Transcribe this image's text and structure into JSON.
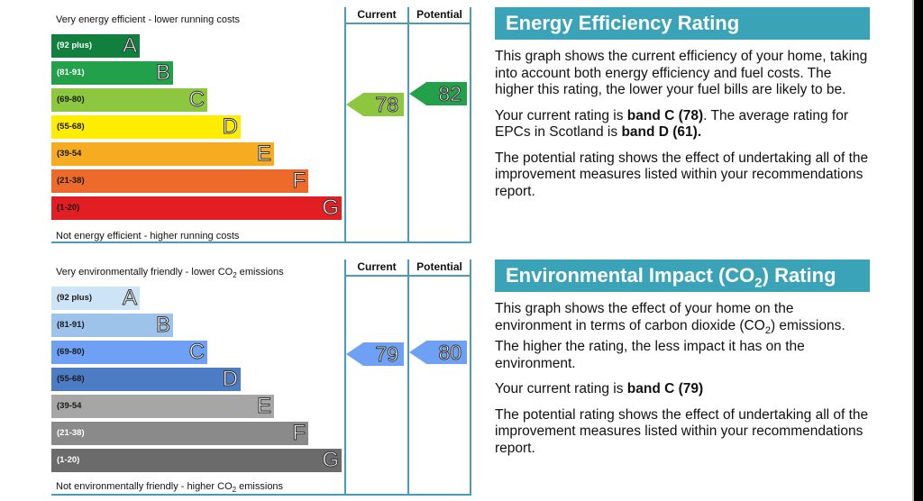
{
  "energy": {
    "top_label": "Very energy efficient - lower running costs",
    "bottom_label": "Not energy efficient - higher running costs",
    "col_current": "Current",
    "col_potential": "Potential",
    "bands": [
      {
        "range": "(92 plus)",
        "letter": "A",
        "color": "#11803f",
        "text_color": "#ffffff"
      },
      {
        "range": "(81-91)",
        "letter": "B",
        "color": "#23a14a",
        "text_color": "#ffffff"
      },
      {
        "range": "(69-80)",
        "letter": "C",
        "color": "#8dc63f",
        "text_color": "#1a1a1a"
      },
      {
        "range": "(55-68)",
        "letter": "D",
        "color": "#ffed00",
        "text_color": "#1a1a1a"
      },
      {
        "range": "(39-54",
        "letter": "E",
        "color": "#f7ab20",
        "text_color": "#1a1a1a"
      },
      {
        "range": "(21-38)",
        "letter": "F",
        "color": "#ee6a2a",
        "text_color": "#1a1a1a"
      },
      {
        "range": "(1-20)",
        "letter": "G",
        "color": "#e31d24",
        "text_color": "#1a1a1a"
      }
    ],
    "current": {
      "value": "78",
      "band": "C",
      "color": "#8dc63f"
    },
    "potential": {
      "value": "82",
      "band": "B",
      "color": "#23a14a"
    }
  },
  "co2": {
    "top_label_pre": "Very environmentally friendly - lower CO",
    "top_label_sub": "2",
    "top_label_post": " emissions",
    "bottom_label_pre": "Not environmentally friendly - higher CO",
    "bottom_label_sub": "2",
    "bottom_label_post": " emissions",
    "col_current": "Current",
    "col_potential": "Potential",
    "bands": [
      {
        "range": "(92 plus)",
        "letter": "A",
        "color": "#cde3f6",
        "text_color": "#1a1a1a"
      },
      {
        "range": "(81-91)",
        "letter": "B",
        "color": "#9dc3ea",
        "text_color": "#1a1a1a"
      },
      {
        "range": "(69-80)",
        "letter": "C",
        "color": "#6ea1f6",
        "text_color": "#1a1a1a"
      },
      {
        "range": "(55-68)",
        "letter": "D",
        "color": "#4c7dc4",
        "text_color": "#1a1a1a"
      },
      {
        "range": "(39-54",
        "letter": "E",
        "color": "#a6a6a6",
        "text_color": "#1a1a1a"
      },
      {
        "range": "(21-38)",
        "letter": "F",
        "color": "#8a8a8a",
        "text_color": "#ffffff"
      },
      {
        "range": "(1-20)",
        "letter": "G",
        "color": "#6b6b6b",
        "text_color": "#ffffff"
      }
    ],
    "current": {
      "value": "79",
      "band": "C",
      "color": "#6ea1f6"
    },
    "potential": {
      "value": "80",
      "band": "C",
      "color": "#6ea1f6"
    }
  },
  "energy_panel": {
    "title": "Energy Efficiency Rating",
    "p1": "This graph shows the current efficiency of your home, taking into account both energy efficiency and fuel costs. The higher this rating, the lower your fuel bills are likely to be.",
    "p2_a": "Your current rating is ",
    "p2_b": "band C (78)",
    "p2_c": ". The average rating for EPCs in Scotland is ",
    "p2_d": "band D (61).",
    "p3": "The potential rating shows the effect of undertaking all of the improvement measures listed within your recommendations report."
  },
  "co2_panel": {
    "title_pre": "Environmental Impact (CO",
    "title_sub": "2",
    "title_post": ") Rating",
    "p1_pre": "This graph shows the effect of your home on the environment in terms of carbon dioxide (CO",
    "p1_sub": "2",
    "p1_post": ") emissions. The higher the rating, the less impact it has on the environment.",
    "p2_a": "Your current rating is ",
    "p2_b": "band C (79)",
    "p3": "The potential rating shows the effect of undertaking all of the improvement measures listed within your recommendations report."
  },
  "accent_color": "#3ba3b8"
}
